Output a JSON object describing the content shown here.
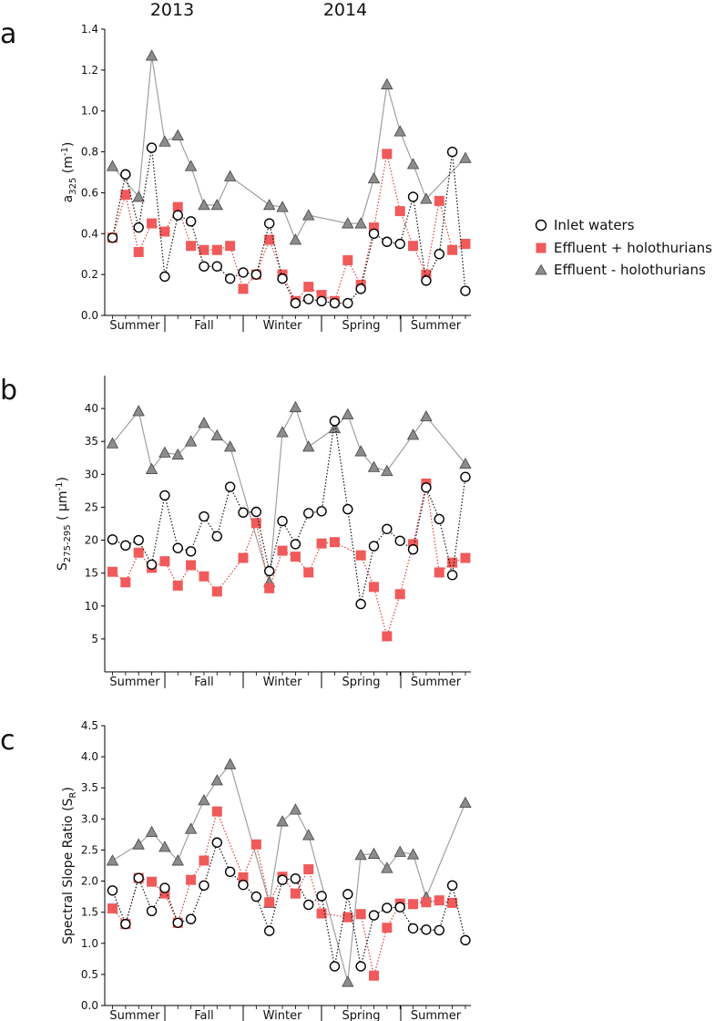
{
  "years": [
    "2013",
    "2014"
  ],
  "seasons": [
    "Summer",
    "Fall",
    "Winter",
    "Spring",
    "Summer"
  ],
  "legend": {
    "inlet": "Inlet waters",
    "plus": "Effluent + holothurians",
    "minus": "Effluent - holothurians"
  },
  "colors": {
    "inlet_fill": "#ffffff",
    "inlet_stroke": "#000000",
    "plus_fill": "#f05a5a",
    "plus_line": "#e03c3c",
    "minus_fill": "#8c8c8c",
    "minus_line": "#a0a0a0"
  },
  "chart_data": [
    {
      "panel": "a",
      "type": "line",
      "ylabel": {
        "main": "a",
        "sub": "325",
        "unit": " (m",
        "sup": "-1",
        "close": ")"
      },
      "ylim": [
        0,
        1.4
      ],
      "yticks": [
        "0.0",
        "0.2",
        "0.4",
        "0.6",
        "0.8",
        "1.0",
        "1.2",
        "1.4"
      ],
      "series": [
        {
          "key": "inlet",
          "style": "dotted",
          "points": [
            [
              1,
              0.38
            ],
            [
              2,
              0.69
            ],
            [
              3,
              0.43
            ],
            [
              4,
              0.82
            ],
            [
              5,
              0.19
            ],
            [
              6,
              0.49
            ],
            [
              7,
              0.46
            ],
            [
              8,
              0.24
            ],
            [
              9,
              0.24
            ],
            [
              10,
              0.18
            ],
            [
              11,
              0.21
            ],
            [
              12,
              0.2
            ],
            [
              13,
              0.45
            ],
            [
              14,
              0.18
            ],
            [
              15,
              0.06
            ],
            [
              16,
              0.08
            ],
            [
              17,
              0.07
            ],
            [
              18,
              0.06
            ],
            [
              19,
              0.06
            ],
            [
              20,
              0.13
            ],
            [
              21,
              0.4
            ],
            [
              22,
              0.36
            ],
            [
              23,
              0.35
            ],
            [
              24,
              0.58
            ],
            [
              25,
              0.17
            ],
            [
              26,
              0.3
            ],
            [
              27,
              0.8
            ],
            [
              28,
              0.12
            ]
          ]
        },
        {
          "key": "plus",
          "style": "dotted",
          "points": [
            [
              1,
              0.38
            ],
            [
              2,
              0.59
            ],
            [
              3,
              0.31
            ],
            [
              4,
              0.45
            ],
            [
              5,
              0.41
            ],
            [
              6,
              0.53
            ],
            [
              7,
              0.34
            ],
            [
              8,
              0.32
            ],
            [
              9,
              0.32
            ],
            [
              10,
              0.34
            ],
            [
              11,
              0.13
            ],
            [
              12,
              0.2
            ],
            [
              13,
              0.37
            ],
            [
              14,
              0.2
            ],
            [
              15,
              0.07
            ],
            [
              16,
              0.14
            ],
            [
              17,
              0.1
            ],
            [
              18,
              0.07
            ],
            [
              19,
              0.27
            ],
            [
              20,
              0.15
            ],
            [
              21,
              0.43
            ],
            [
              22,
              0.79
            ],
            [
              23,
              0.51
            ],
            [
              24,
              0.34
            ],
            [
              25,
              0.2
            ],
            [
              26,
              0.56
            ],
            [
              27,
              0.32
            ],
            [
              28,
              0.35
            ]
          ]
        },
        {
          "key": "minus",
          "style": "solid",
          "points": [
            [
              1,
              0.73
            ],
            [
              3,
              0.58
            ],
            [
              4,
              1.27
            ],
            [
              5,
              0.85
            ],
            [
              6,
              0.88
            ],
            [
              7,
              0.73
            ],
            [
              8,
              0.54
            ],
            [
              9,
              0.54
            ],
            [
              10,
              0.68
            ],
            [
              13,
              0.54
            ],
            [
              14,
              0.53
            ],
            [
              15,
              0.37
            ],
            [
              16,
              0.49
            ],
            [
              19,
              0.45
            ],
            [
              20,
              0.45
            ],
            [
              21,
              0.67
            ],
            [
              22,
              1.13
            ],
            [
              23,
              0.9
            ],
            [
              24,
              0.74
            ],
            [
              25,
              0.57
            ],
            [
              28,
              0.77
            ]
          ]
        }
      ]
    },
    {
      "panel": "b",
      "type": "line",
      "ylabel": {
        "main": "S",
        "sub": "275-295",
        "unit": " ( µm",
        "sup": "-1",
        "close": ")"
      },
      "ylim": [
        0,
        45
      ],
      "yticks": [
        "5",
        "10",
        "15",
        "20",
        "25",
        "30",
        "35",
        "40"
      ],
      "series": [
        {
          "key": "inlet",
          "style": "dotted",
          "points": [
            [
              1,
              20.1
            ],
            [
              2,
              19.2
            ],
            [
              3,
              20.0
            ],
            [
              4,
              16.3
            ],
            [
              5,
              26.8
            ],
            [
              6,
              18.8
            ],
            [
              7,
              18.3
            ],
            [
              8,
              23.6
            ],
            [
              9,
              20.6
            ],
            [
              10,
              28.1
            ],
            [
              11,
              24.2
            ],
            [
              12,
              24.3
            ],
            [
              13,
              15.3
            ],
            [
              14,
              22.9
            ],
            [
              15,
              19.4
            ],
            [
              16,
              24.1
            ],
            [
              17,
              24.4
            ],
            [
              18,
              38.1
            ],
            [
              19,
              24.7
            ],
            [
              20,
              10.3
            ],
            [
              21,
              19.1
            ],
            [
              22,
              21.7
            ],
            [
              23,
              19.9
            ],
            [
              24,
              18.6
            ],
            [
              25,
              28.0
            ],
            [
              26,
              23.2
            ],
            [
              27,
              14.7
            ],
            [
              28,
              29.6
            ]
          ]
        },
        {
          "key": "plus",
          "style": "dotted",
          "points": [
            [
              1,
              15.2
            ],
            [
              2,
              13.6
            ],
            [
              3,
              18.1
            ],
            [
              4,
              15.8
            ],
            [
              5,
              16.8
            ],
            [
              6,
              13.1
            ],
            [
              7,
              16.2
            ],
            [
              8,
              14.5
            ],
            [
              9,
              12.2
            ],
            [
              11,
              17.3
            ],
            [
              12,
              22.6
            ],
            [
              13,
              12.7
            ],
            [
              14,
              18.4
            ],
            [
              15,
              17.5
            ],
            [
              16,
              15.1
            ],
            [
              17,
              19.5
            ],
            [
              18,
              19.7
            ],
            [
              20,
              17.7
            ],
            [
              21,
              12.9
            ],
            [
              22,
              5.4
            ],
            [
              23,
              11.8
            ],
            [
              24,
              19.4
            ],
            [
              25,
              28.6
            ],
            [
              26,
              15.1
            ],
            [
              27,
              16.6
            ],
            [
              28,
              17.3
            ]
          ]
        },
        {
          "key": "minus",
          "style": "solid",
          "points": [
            [
              1,
              34.7
            ],
            [
              3,
              39.6
            ],
            [
              4,
              30.8
            ],
            [
              5,
              33.3
            ],
            [
              6,
              33.0
            ],
            [
              7,
              35.0
            ],
            [
              8,
              37.8
            ],
            [
              9,
              35.9
            ],
            [
              10,
              34.2
            ],
            [
              13,
              13.6
            ],
            [
              14,
              36.4
            ],
            [
              15,
              40.2
            ],
            [
              16,
              34.2
            ],
            [
              18,
              37.0
            ],
            [
              19,
              39.1
            ],
            [
              20,
              33.5
            ],
            [
              21,
              31.1
            ],
            [
              22,
              30.5
            ],
            [
              24,
              36.0
            ],
            [
              25,
              38.8
            ],
            [
              28,
              31.6
            ]
          ]
        }
      ]
    },
    {
      "panel": "c",
      "type": "line",
      "ylabel": {
        "main": "Spectral Slope Ratio (S",
        "sub": "R",
        "unit": ")",
        "sup": "",
        "close": ""
      },
      "ylim": [
        0,
        4.5
      ],
      "yticks": [
        "0.0",
        "0.5",
        "1.0",
        "1.5",
        "2.0",
        "2.5",
        "3.0",
        "3.5",
        "4.0",
        "4.5"
      ],
      "series": [
        {
          "key": "inlet",
          "style": "dotted",
          "points": [
            [
              1,
              1.85
            ],
            [
              2,
              1.31
            ],
            [
              3,
              2.05
            ],
            [
              4,
              1.52
            ],
            [
              5,
              1.89
            ],
            [
              6,
              1.33
            ],
            [
              7,
              1.39
            ],
            [
              8,
              1.93
            ],
            [
              9,
              2.62
            ],
            [
              10,
              2.15
            ],
            [
              11,
              1.94
            ],
            [
              12,
              1.75
            ],
            [
              13,
              1.2
            ],
            [
              14,
              2.02
            ],
            [
              15,
              2.04
            ],
            [
              16,
              1.62
            ],
            [
              17,
              1.76
            ],
            [
              18,
              0.63
            ],
            [
              19,
              1.79
            ],
            [
              20,
              0.63
            ],
            [
              21,
              1.45
            ],
            [
              22,
              1.57
            ],
            [
              23,
              1.58
            ],
            [
              24,
              1.24
            ],
            [
              25,
              1.22
            ],
            [
              26,
              1.21
            ],
            [
              27,
              1.93
            ],
            [
              28,
              1.05
            ]
          ]
        },
        {
          "key": "plus",
          "style": "dotted",
          "points": [
            [
              1,
              1.56
            ],
            [
              2,
              1.31
            ],
            [
              3,
              2.05
            ],
            [
              4,
              1.99
            ],
            [
              5,
              1.8
            ],
            [
              6,
              1.33
            ],
            [
              7,
              2.02
            ],
            [
              8,
              2.33
            ],
            [
              9,
              3.12
            ],
            [
              11,
              2.06
            ],
            [
              12,
              2.59
            ],
            [
              13,
              1.66
            ],
            [
              14,
              2.07
            ],
            [
              15,
              1.8
            ],
            [
              16,
              2.19
            ],
            [
              17,
              1.48
            ],
            [
              19,
              1.42
            ],
            [
              20,
              1.47
            ],
            [
              21,
              0.48
            ],
            [
              22,
              1.25
            ],
            [
              23,
              1.64
            ],
            [
              24,
              1.63
            ],
            [
              25,
              1.66
            ],
            [
              26,
              1.69
            ],
            [
              27,
              1.65
            ]
          ]
        },
        {
          "key": "minus",
          "style": "solid",
          "points": [
            [
              1,
              2.33
            ],
            [
              3,
              2.59
            ],
            [
              4,
              2.79
            ],
            [
              5,
              2.55
            ],
            [
              6,
              2.33
            ],
            [
              7,
              2.84
            ],
            [
              8,
              3.3
            ],
            [
              9,
              3.62
            ],
            [
              10,
              3.88
            ],
            [
              13,
              1.65
            ],
            [
              14,
              2.96
            ],
            [
              15,
              3.15
            ],
            [
              16,
              2.74
            ],
            [
              19,
              0.38
            ],
            [
              20,
              2.42
            ],
            [
              21,
              2.44
            ],
            [
              22,
              2.21
            ],
            [
              23,
              2.47
            ],
            [
              24,
              2.43
            ],
            [
              25,
              1.74
            ],
            [
              28,
              3.26
            ]
          ]
        }
      ]
    }
  ]
}
